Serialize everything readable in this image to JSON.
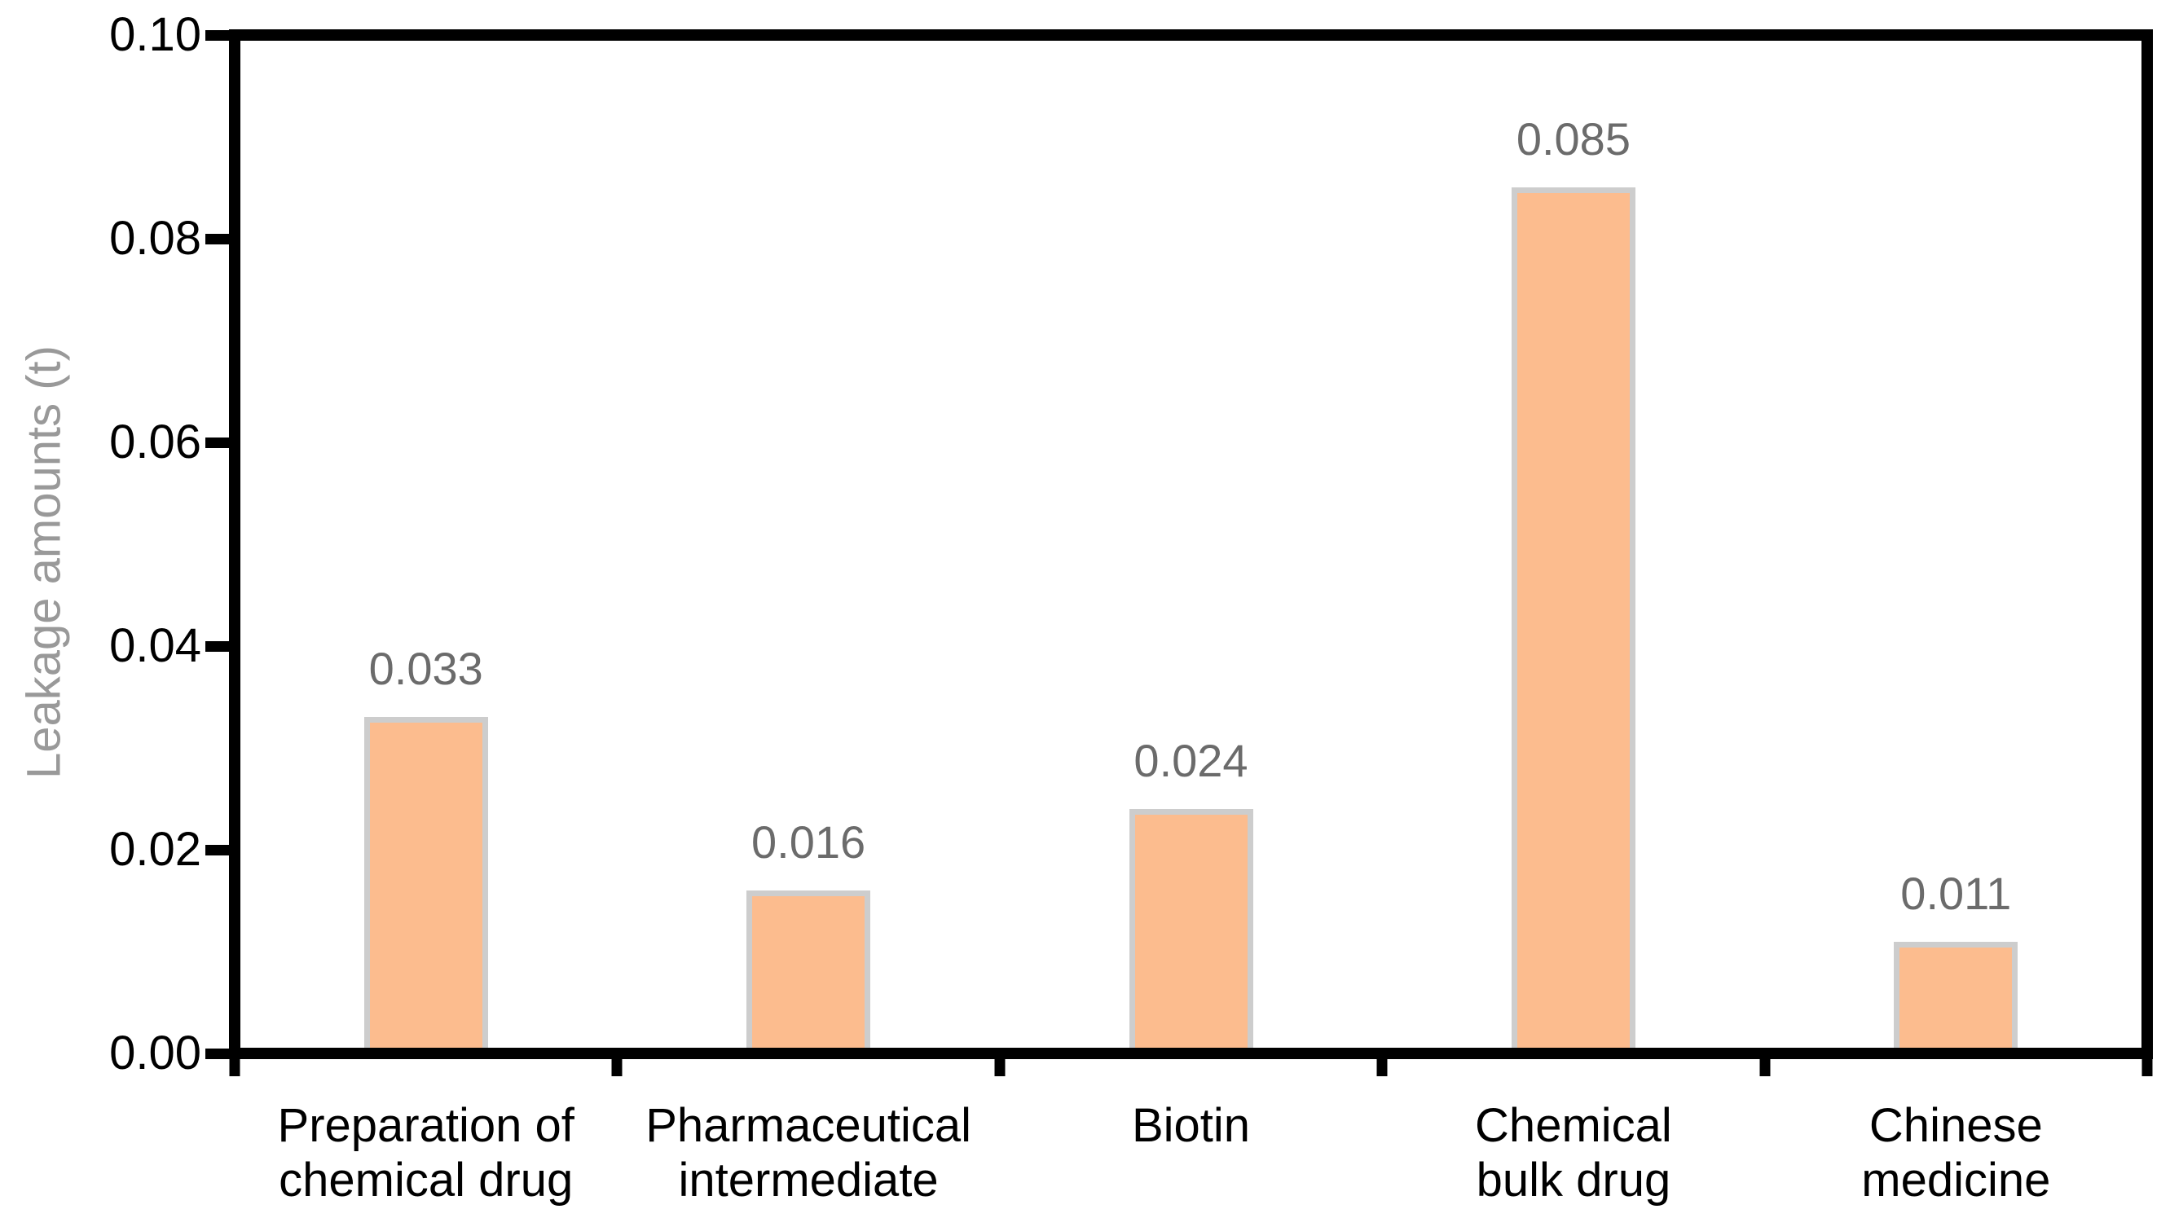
{
  "chart_data": {
    "type": "bar",
    "title": "",
    "categories": [
      "Preparation of\nchemical drug",
      "Pharmaceutical\nintermediate",
      "Biotin",
      "Chemical\nbulk drug",
      "Chinese\nmedicine"
    ],
    "values": [
      0.033,
      0.016,
      0.024,
      0.085,
      0.011
    ],
    "value_labels": [
      "0.033",
      "0.016",
      "0.024",
      "0.085",
      "0.011"
    ],
    "xlabel": "",
    "ylabel": "Leakage amounts (t)",
    "ylim": [
      0,
      0.1
    ],
    "yticks": [
      {
        "value": 0.0,
        "label": "0.00"
      },
      {
        "value": 0.02,
        "label": "0.02"
      },
      {
        "value": 0.04,
        "label": "0.04"
      },
      {
        "value": 0.06,
        "label": "0.06"
      },
      {
        "value": 0.08,
        "label": "0.08"
      },
      {
        "value": 0.1,
        "label": "0.10"
      }
    ],
    "grid": false,
    "legend": null,
    "colors": {
      "bar_fill": "#FCBC8E",
      "bar_border": "#CDCDCD",
      "value_label": "#6B6B6B",
      "axis": "#000000",
      "ylabel_text": "#999999",
      "background": "#FFFFFF"
    }
  }
}
